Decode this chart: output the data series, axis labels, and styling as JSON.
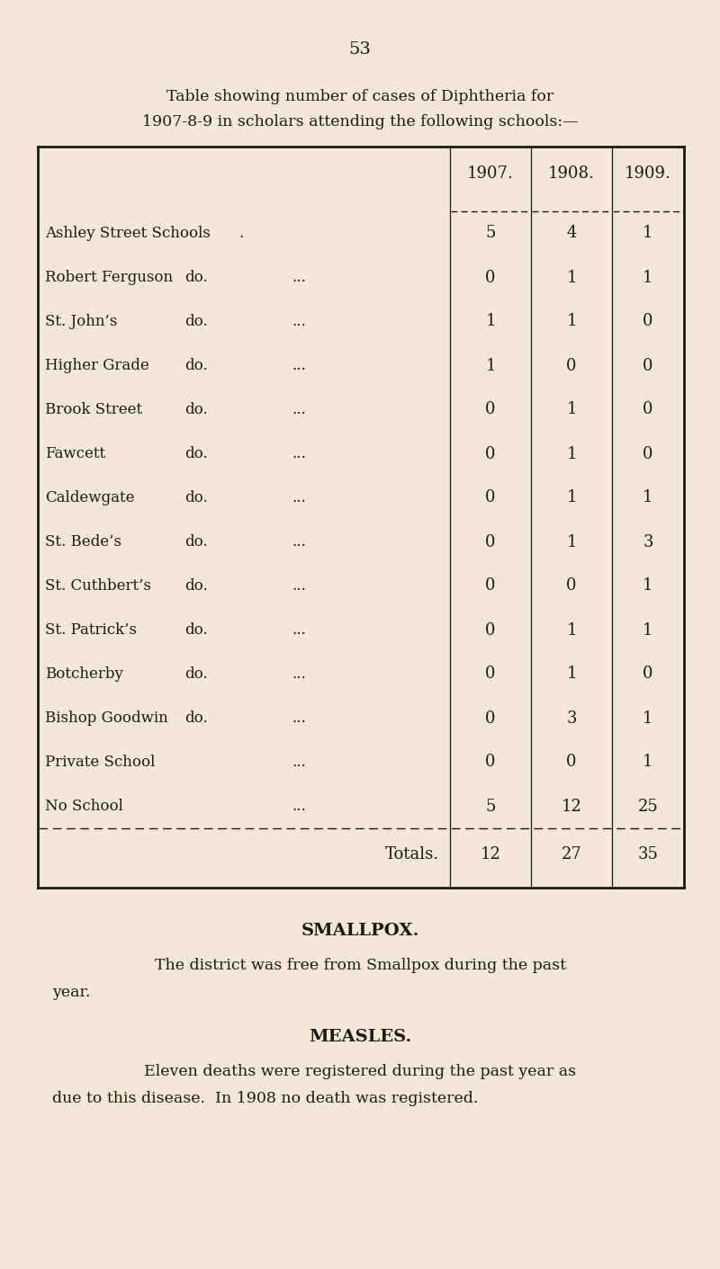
{
  "page_number": "53",
  "intro_text_line1": "Table showing number of cases of Diphtheria for",
  "intro_text_line2": "1907-8-9 in scholars attending the following schools:—",
  "background_color": "#f2e8d5",
  "text_color": "#1e1a12",
  "col_headers": [
    "1907.",
    "1908.",
    "1909."
  ],
  "rows": [
    {
      "name": "Ashley Street Schools",
      "do": ".",
      "dots": "",
      "v1907": "5",
      "v1908": "4",
      "v1909": "1"
    },
    {
      "name": "Robert Ferguson",
      "do": "do.",
      "dots": "...",
      "v1907": "0",
      "v1908": "1",
      "v1909": "1"
    },
    {
      "name": "St. John’s",
      "do": "do.",
      "dots": "...",
      "v1907": "1",
      "v1908": "1",
      "v1909": "0"
    },
    {
      "name": "Higher Grade",
      "do": "do.",
      "dots": "...",
      "v1907": "1",
      "v1908": "0",
      "v1909": "0"
    },
    {
      "name": "Brook Street",
      "do": "do.",
      "dots": "...",
      "v1907": "0",
      "v1908": "1",
      "v1909": "0"
    },
    {
      "name": "Fawcett",
      "do": "do.",
      "dots": "...",
      "v1907": "0",
      "v1908": "1",
      "v1909": "0"
    },
    {
      "name": "Caldewgate",
      "do": "do.",
      "dots": "...",
      "v1907": "0",
      "v1908": "1",
      "v1909": "1"
    },
    {
      "name": "St. Bede’s",
      "do": "do.",
      "dots": "...",
      "v1907": "0",
      "v1908": "1",
      "v1909": "3"
    },
    {
      "name": "St. Cuthbert’s",
      "do": "do.",
      "dots": "...",
      "v1907": "0",
      "v1908": "0",
      "v1909": "1"
    },
    {
      "name": "St. Patrick’s",
      "do": "do.",
      "dots": "...",
      "v1907": "0",
      "v1908": "1",
      "v1909": "1"
    },
    {
      "name": "Botcherby",
      "do": "do.",
      "dots": "...",
      "v1907": "0",
      "v1908": "1",
      "v1909": "0"
    },
    {
      "name": "Bishop Goodwin",
      "do": "do.",
      "dots": "...",
      "v1907": "0",
      "v1908": "3",
      "v1909": "1"
    },
    {
      "name": "Private School",
      "do": "",
      "dots": "...",
      "v1907": "0",
      "v1908": "0",
      "v1909": "1"
    },
    {
      "name": "No School",
      "do": "",
      "dots": "...",
      "v1907": "5",
      "v1908": "12",
      "v1909": "25"
    }
  ],
  "totals_label": "Totals.",
  "totals": [
    "12",
    "27",
    "35"
  ],
  "smallpox_heading": "SMALLPOX.",
  "smallpox_text": "    The district was free from Smallpox during the past\nyear.",
  "measles_heading": "MEASLES.",
  "measles_text": "    Eleven deaths were registered during the past year as\ndue to this disease.  In 1908 no death was registered."
}
